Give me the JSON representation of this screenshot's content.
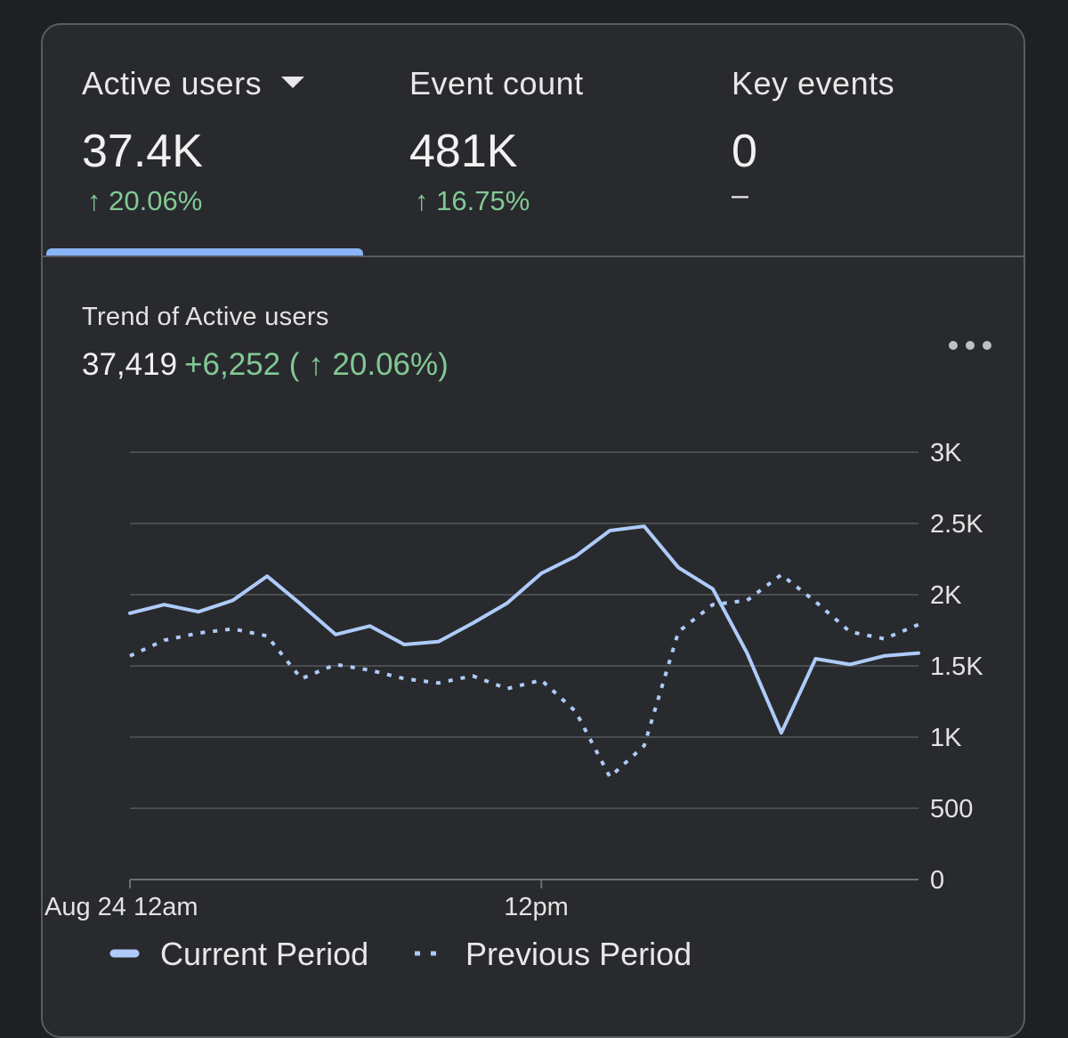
{
  "tabs": [
    {
      "label": "Active users",
      "value": "37.4K",
      "change": "20.06%",
      "has_dropdown": true,
      "selected": true
    },
    {
      "label": "Event count",
      "value": "481K",
      "change": "16.75%",
      "has_dropdown": false,
      "selected": false
    },
    {
      "label": "Key events",
      "value": "0",
      "change": "–",
      "has_dropdown": false,
      "selected": false
    }
  ],
  "trend": {
    "title": "Trend of Active users",
    "total": "37,419",
    "delta": "+6,252 ( ↑ 20.06%)",
    "more_icon": "more-horizontal-icon"
  },
  "colors": {
    "accent": "#8ab4f8",
    "positive": "#81c995",
    "background": "#292a2d"
  },
  "chart_data": {
    "type": "line",
    "title": "Trend of Active users",
    "xlabel": "",
    "ylabel": "",
    "x_tick_labels": [
      "Aug 24 12am",
      "12pm"
    ],
    "x_tick_index": [
      0,
      12
    ],
    "y_ticks": [
      0,
      500,
      1000,
      1500,
      2000,
      2500,
      3000
    ],
    "y_tick_labels": [
      "0",
      "500",
      "1K",
      "1.5K",
      "2K",
      "2.5K",
      "3K"
    ],
    "ylim": [
      0,
      3000
    ],
    "x_count": 24,
    "grid": true,
    "legend_position": "bottom-left",
    "series": [
      {
        "name": "Current Period",
        "style": "solid",
        "values": [
          1870,
          1930,
          1880,
          1960,
          2130,
          1930,
          1720,
          1780,
          1650,
          1670,
          1800,
          1940,
          2150,
          2270,
          2450,
          2480,
          2190,
          2040,
          1590,
          1030,
          1550,
          1510,
          1570,
          1590
        ]
      },
      {
        "name": "Previous Period",
        "style": "dotted",
        "values": [
          1570,
          1680,
          1730,
          1760,
          1710,
          1410,
          1510,
          1470,
          1410,
          1380,
          1430,
          1340,
          1400,
          1180,
          720,
          940,
          1740,
          1930,
          1960,
          2140,
          1950,
          1740,
          1690,
          1790
        ]
      }
    ]
  }
}
